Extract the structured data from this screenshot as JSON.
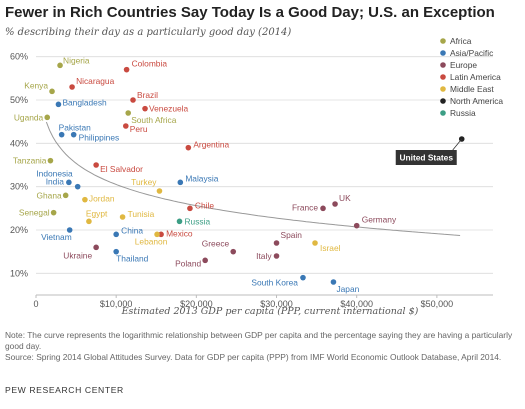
{
  "title": "Fewer in Rich Countries Say Today Is a Good Day; U.S. an Exception",
  "subtitle": "% describing their day as a particularly good day (2014)",
  "note": "Note: The curve represents the logarithmic relationship between GDP per capita and the percentage saying they are having a particularly good day.",
  "source": "Source: Spring 2014 Global Attitudes Survey. Data for GDP per capita (PPP) from IMF World Economic Outlook Database, April 2014.",
  "org": "PEW RESEARCH CENTER",
  "chart_data": {
    "type": "scatter",
    "title": "Fewer in Rich Countries Say Today Is a Good Day; U.S. an Exception",
    "subtitle": "% describing their day as a particularly good day (2014)",
    "xlabel": "Estimated 2013 GDP per capita (PPP, current international $)",
    "ylabel": "",
    "xlim": [
      0,
      57000
    ],
    "ylim": [
      5,
      62
    ],
    "xticks": [
      0,
      10000,
      20000,
      30000,
      40000,
      50000
    ],
    "xtick_labels": [
      "0",
      "$10,000",
      "$20,000",
      "$30,000",
      "$40,000",
      "$50,000"
    ],
    "yticks": [
      10,
      20,
      30,
      40,
      50,
      60
    ],
    "ytick_labels": [
      "10%",
      "20%",
      "30%",
      "40%",
      "50%",
      "60%"
    ],
    "grid": "horizontal",
    "legend_position": "top-right",
    "trend_curve": "logarithmic",
    "regions": [
      {
        "name": "Africa",
        "color": "#a6a64a"
      },
      {
        "name": "Asia/Pacific",
        "color": "#3a78b5"
      },
      {
        "name": "Europe",
        "color": "#8c4a5c"
      },
      {
        "name": "Latin America",
        "color": "#c94a40"
      },
      {
        "name": "Middle East",
        "color": "#e0b841"
      },
      {
        "name": "North America",
        "color": "#222222"
      },
      {
        "name": "Russia",
        "color": "#3c9e85"
      }
    ],
    "points": [
      {
        "name": "Nigeria",
        "region": "Africa",
        "x": 3000,
        "y": 58
      },
      {
        "name": "Kenya",
        "region": "Africa",
        "x": 2000,
        "y": 52
      },
      {
        "name": "Uganda",
        "region": "Africa",
        "x": 1400,
        "y": 46
      },
      {
        "name": "Tanzania",
        "region": "Africa",
        "x": 1800,
        "y": 36
      },
      {
        "name": "Ghana",
        "region": "Africa",
        "x": 3700,
        "y": 28
      },
      {
        "name": "Senegal",
        "region": "Africa",
        "x": 2200,
        "y": 24
      },
      {
        "name": "South Africa",
        "region": "Africa",
        "x": 11500,
        "y": 47
      },
      {
        "name": "Bangladesh",
        "region": "Asia/Pacific",
        "x": 2800,
        "y": 49
      },
      {
        "name": "Pakistan",
        "region": "Asia/Pacific",
        "x": 3200,
        "y": 42
      },
      {
        "name": "Philippines",
        "region": "Asia/Pacific",
        "x": 4700,
        "y": 42
      },
      {
        "name": "Indonesia",
        "region": "Asia/Pacific",
        "x": 5200,
        "y": 30
      },
      {
        "name": "India",
        "region": "Asia/Pacific",
        "x": 4100,
        "y": 31
      },
      {
        "name": "Vietnam",
        "region": "Asia/Pacific",
        "x": 4200,
        "y": 20
      },
      {
        "name": "China",
        "region": "Asia/Pacific",
        "x": 10000,
        "y": 19
      },
      {
        "name": "Thailand",
        "region": "Asia/Pacific",
        "x": 10000,
        "y": 15
      },
      {
        "name": "Malaysia",
        "region": "Asia/Pacific",
        "x": 18000,
        "y": 31
      },
      {
        "name": "South Korea",
        "region": "Asia/Pacific",
        "x": 33300,
        "y": 9
      },
      {
        "name": "Japan",
        "region": "Asia/Pacific",
        "x": 37100,
        "y": 8
      },
      {
        "name": "Ukraine",
        "region": "Europe",
        "x": 7500,
        "y": 16
      },
      {
        "name": "Poland",
        "region": "Europe",
        "x": 21100,
        "y": 13
      },
      {
        "name": "Greece",
        "region": "Europe",
        "x": 24600,
        "y": 15
      },
      {
        "name": "Italy",
        "region": "Europe",
        "x": 30000,
        "y": 14
      },
      {
        "name": "Spain",
        "region": "Europe",
        "x": 30000,
        "y": 17
      },
      {
        "name": "France",
        "region": "Europe",
        "x": 35800,
        "y": 25
      },
      {
        "name": "UK",
        "region": "Europe",
        "x": 37300,
        "y": 26
      },
      {
        "name": "Germany",
        "region": "Europe",
        "x": 40000,
        "y": 21
      },
      {
        "name": "Nicaragua",
        "region": "Latin America",
        "x": 4500,
        "y": 53
      },
      {
        "name": "Colombia",
        "region": "Latin America",
        "x": 11300,
        "y": 57
      },
      {
        "name": "Brazil",
        "region": "Latin America",
        "x": 12100,
        "y": 50
      },
      {
        "name": "Venezuela",
        "region": "Latin America",
        "x": 13600,
        "y": 48
      },
      {
        "name": "Peru",
        "region": "Latin America",
        "x": 11200,
        "y": 44
      },
      {
        "name": "El Salvador",
        "region": "Latin America",
        "x": 7500,
        "y": 35
      },
      {
        "name": "Argentina",
        "region": "Latin America",
        "x": 19000,
        "y": 39
      },
      {
        "name": "Chile",
        "region": "Latin America",
        "x": 19200,
        "y": 25
      },
      {
        "name": "Mexico",
        "region": "Latin America",
        "x": 15600,
        "y": 19
      },
      {
        "name": "Jordan",
        "region": "Middle East",
        "x": 6100,
        "y": 27
      },
      {
        "name": "Egypt",
        "region": "Middle East",
        "x": 6600,
        "y": 22
      },
      {
        "name": "Tunisia",
        "region": "Middle East",
        "x": 10800,
        "y": 23
      },
      {
        "name": "Turkey",
        "region": "Middle East",
        "x": 15400,
        "y": 29
      },
      {
        "name": "Lebanon",
        "region": "Middle East",
        "x": 15100,
        "y": 19
      },
      {
        "name": "Israel",
        "region": "Middle East",
        "x": 34800,
        "y": 17
      },
      {
        "name": "Russia",
        "region": "Russia",
        "x": 17900,
        "y": 22
      },
      {
        "name": "United States",
        "region": "North America",
        "x": 53100,
        "y": 41
      }
    ]
  }
}
